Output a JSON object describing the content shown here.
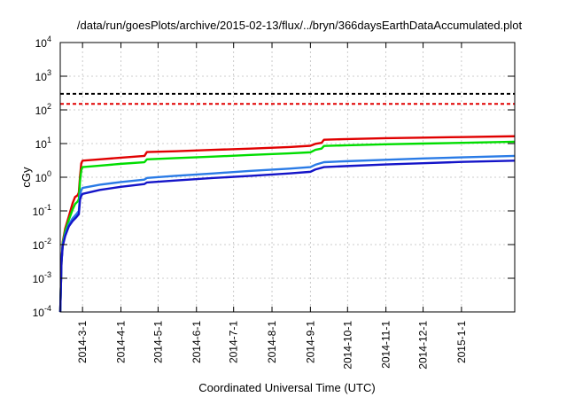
{
  "chart_data": {
    "type": "line",
    "title": "/data/run/goesPlots/archive/2015-02-13/flux/../bryn/366daysEarthDataAccumulated.plot",
    "xlabel": "Coordinated Universal Time (UTC)",
    "ylabel": "cGy",
    "yscale": "log",
    "xlim": [
      "2014-02-11",
      "2015-02-13"
    ],
    "ylim": [
      0.0001,
      10000
    ],
    "grid": true,
    "x_ticks": [
      "2014-3-1",
      "2014-4-1",
      "2014-5-1",
      "2014-6-1",
      "2014-7-1",
      "2014-8-1",
      "2014-9-1",
      "2014-10-1",
      "2014-11-1",
      "2014-12-1",
      "2015-1-1"
    ],
    "y_ticks": [
      {
        "value": 0.0001,
        "base": "10",
        "exp": "-4"
      },
      {
        "value": 0.001,
        "base": "10",
        "exp": "-3"
      },
      {
        "value": 0.01,
        "base": "10",
        "exp": "-2"
      },
      {
        "value": 0.1,
        "base": "10",
        "exp": "-1"
      },
      {
        "value": 1,
        "base": "10",
        "exp": "0"
      },
      {
        "value": 10,
        "base": "10",
        "exp": "1"
      },
      {
        "value": 100,
        "base": "10",
        "exp": "2"
      },
      {
        "value": 1000,
        "base": "10",
        "exp": "3"
      },
      {
        "value": 10000,
        "base": "10",
        "exp": "4"
      }
    ],
    "thresholds": [
      {
        "value": 300,
        "color": "#000000",
        "dash": true
      },
      {
        "value": 150,
        "color": "#e00000",
        "dash": true
      }
    ],
    "series": [
      {
        "color": "#e00000",
        "points": [
          [
            "2014-02-11",
            0.0001
          ],
          [
            "2014-02-12",
            0.003
          ],
          [
            "2014-02-13",
            0.012
          ],
          [
            "2014-02-15",
            0.03
          ],
          [
            "2014-02-18",
            0.07
          ],
          [
            "2014-02-21",
            0.17
          ],
          [
            "2014-02-23",
            0.26
          ],
          [
            "2014-02-25",
            0.29
          ],
          [
            "2014-02-26",
            0.35
          ],
          [
            "2014-02-27",
            1.1
          ],
          [
            "2014-02-28",
            2.6
          ],
          [
            "2014-03-01",
            3.1
          ],
          [
            "2014-03-15",
            3.4
          ],
          [
            "2014-04-01",
            3.8
          ],
          [
            "2014-04-20",
            4.3
          ],
          [
            "2014-04-22",
            5.6
          ],
          [
            "2014-05-15",
            5.9
          ],
          [
            "2014-06-15",
            6.5
          ],
          [
            "2014-07-15",
            7.1
          ],
          [
            "2014-08-15",
            7.9
          ],
          [
            "2014-09-01",
            8.6
          ],
          [
            "2014-09-05",
            9.8
          ],
          [
            "2014-09-10",
            10.5
          ],
          [
            "2014-09-12",
            13.0
          ],
          [
            "2014-10-01",
            13.6
          ],
          [
            "2014-11-01",
            14.4
          ],
          [
            "2014-12-01",
            15.0
          ],
          [
            "2015-01-01",
            15.6
          ],
          [
            "2015-02-13",
            16.5
          ]
        ]
      },
      {
        "color": "#00dd00",
        "points": [
          [
            "2014-02-11",
            0.0001
          ],
          [
            "2014-02-12",
            0.003
          ],
          [
            "2014-02-13",
            0.011
          ],
          [
            "2014-02-15",
            0.025
          ],
          [
            "2014-02-18",
            0.055
          ],
          [
            "2014-02-21",
            0.11
          ],
          [
            "2014-02-23",
            0.16
          ],
          [
            "2014-02-25",
            0.19
          ],
          [
            "2014-02-26",
            0.22
          ],
          [
            "2014-02-27",
            0.8
          ],
          [
            "2014-02-28",
            1.6
          ],
          [
            "2014-03-01",
            2.0
          ],
          [
            "2014-03-15",
            2.2
          ],
          [
            "2014-04-01",
            2.5
          ],
          [
            "2014-04-20",
            2.8
          ],
          [
            "2014-04-22",
            3.4
          ],
          [
            "2014-05-15",
            3.7
          ],
          [
            "2014-06-15",
            4.1
          ],
          [
            "2014-07-15",
            4.6
          ],
          [
            "2014-08-15",
            5.1
          ],
          [
            "2014-09-01",
            5.5
          ],
          [
            "2014-09-05",
            6.5
          ],
          [
            "2014-09-10",
            7.1
          ],
          [
            "2014-09-12",
            8.5
          ],
          [
            "2014-10-01",
            8.9
          ],
          [
            "2014-11-01",
            9.5
          ],
          [
            "2014-12-01",
            10.0
          ],
          [
            "2015-01-01",
            10.5
          ],
          [
            "2015-02-13",
            11.3
          ]
        ]
      },
      {
        "color": "#2a7be6",
        "points": [
          [
            "2014-02-11",
            0.0001
          ],
          [
            "2014-02-12",
            0.003
          ],
          [
            "2014-02-13",
            0.01
          ],
          [
            "2014-02-15",
            0.02
          ],
          [
            "2014-02-18",
            0.04
          ],
          [
            "2014-02-21",
            0.06
          ],
          [
            "2014-02-24",
            0.08
          ],
          [
            "2014-02-26",
            0.1
          ],
          [
            "2014-02-27",
            0.3
          ],
          [
            "2014-02-28",
            0.42
          ],
          [
            "2014-03-01",
            0.48
          ],
          [
            "2014-03-15",
            0.6
          ],
          [
            "2014-04-01",
            0.72
          ],
          [
            "2014-04-20",
            0.85
          ],
          [
            "2014-04-22",
            0.95
          ],
          [
            "2014-05-15",
            1.1
          ],
          [
            "2014-06-15",
            1.3
          ],
          [
            "2014-07-15",
            1.55
          ],
          [
            "2014-08-15",
            1.8
          ],
          [
            "2014-09-01",
            2.0
          ],
          [
            "2014-09-05",
            2.35
          ],
          [
            "2014-09-12",
            2.8
          ],
          [
            "2014-10-01",
            3.0
          ],
          [
            "2014-11-01",
            3.3
          ],
          [
            "2014-12-01",
            3.6
          ],
          [
            "2015-01-01",
            3.9
          ],
          [
            "2015-02-13",
            4.3
          ]
        ]
      },
      {
        "color": "#1414c8",
        "points": [
          [
            "2014-02-11",
            0.0001
          ],
          [
            "2014-02-12",
            0.003
          ],
          [
            "2014-02-13",
            0.009
          ],
          [
            "2014-02-15",
            0.018
          ],
          [
            "2014-02-18",
            0.035
          ],
          [
            "2014-02-21",
            0.05
          ],
          [
            "2014-02-24",
            0.065
          ],
          [
            "2014-02-26",
            0.08
          ],
          [
            "2014-02-27",
            0.22
          ],
          [
            "2014-02-28",
            0.28
          ],
          [
            "2014-03-01",
            0.32
          ],
          [
            "2014-03-15",
            0.42
          ],
          [
            "2014-04-01",
            0.52
          ],
          [
            "2014-04-20",
            0.63
          ],
          [
            "2014-04-22",
            0.7
          ],
          [
            "2014-05-15",
            0.8
          ],
          [
            "2014-06-15",
            0.95
          ],
          [
            "2014-07-15",
            1.1
          ],
          [
            "2014-08-15",
            1.3
          ],
          [
            "2014-09-01",
            1.45
          ],
          [
            "2014-09-05",
            1.7
          ],
          [
            "2014-09-12",
            2.0
          ],
          [
            "2014-10-01",
            2.15
          ],
          [
            "2014-11-01",
            2.4
          ],
          [
            "2014-12-01",
            2.6
          ],
          [
            "2015-01-01",
            2.85
          ],
          [
            "2015-02-13",
            3.1
          ]
        ]
      }
    ]
  }
}
